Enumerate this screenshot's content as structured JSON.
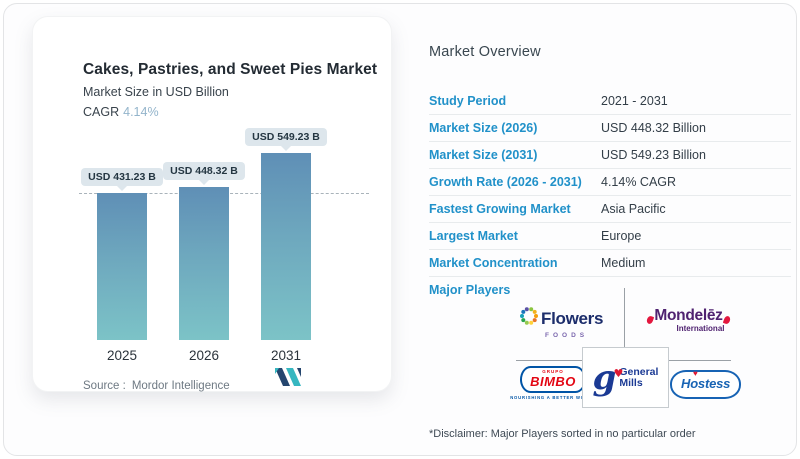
{
  "chart_card": {
    "title": "Cakes, Pastries, and Sweet Pies Market",
    "subtitle": "Market Size in USD Billion",
    "cagr_label": "CAGR",
    "cagr_value": "4.14%",
    "source_label": "Source :",
    "source_name": "Mordor Intelligence"
  },
  "chart_data": {
    "type": "bar",
    "title": "Cakes, Pastries, and Sweet Pies Market",
    "ylabel": "Market Size in USD Billion",
    "categories": [
      "2025",
      "2026",
      "2031"
    ],
    "values": [
      431.23,
      448.32,
      549.23
    ],
    "bar_labels": [
      "USD 431.23 B",
      "USD 448.32 B",
      "USD 549.23 B"
    ],
    "ylim": [
      0,
      600
    ],
    "grid": false,
    "reference_line_at": 431.23,
    "reference_line_style": "dashed",
    "bar_gradient_top": "#5f8fb6",
    "bar_gradient_bottom": "#7cc3c7",
    "legend": "none"
  },
  "overview": {
    "title": "Market Overview",
    "rows": [
      {
        "label": "Study Period",
        "value": "2021 - 2031"
      },
      {
        "label": "Market Size (2026)",
        "value": "USD 448.32 Billion"
      },
      {
        "label": "Market Size (2031)",
        "value": "USD 549.23 Billion"
      },
      {
        "label": "Growth Rate (2026 - 2031)",
        "value": "4.14% CAGR"
      },
      {
        "label": "Fastest Growing Market",
        "value": "Asia Pacific"
      },
      {
        "label": "Largest Market",
        "value": "Europe"
      },
      {
        "label": "Market Concentration",
        "value": "Medium"
      }
    ],
    "major_players_label": "Major Players",
    "disclaimer": "*Disclaimer: Major Players sorted in no particular order"
  },
  "logos": {
    "flowers": {
      "name": "Flowers",
      "sub": "FOODS"
    },
    "mondelez": {
      "name": "Mondelēz",
      "sub": "International"
    },
    "bimbo": {
      "grupo": "GRUPO",
      "name": "BIMBO",
      "tagline": "NOURISHING A BETTER WORLD"
    },
    "general_mills": {
      "monogram": "g",
      "line1": "General",
      "line2": "Mills"
    },
    "hostess": {
      "name": "Hostess"
    }
  },
  "colors": {
    "accent_blue": "#2191c9",
    "cagr_value_blue": "#93b4cb",
    "chip_bg": "#dde6ec",
    "bar_top": "#5f8fb6",
    "bar_bottom": "#7cc3c7",
    "divider_gray": "#9aa0a6"
  }
}
